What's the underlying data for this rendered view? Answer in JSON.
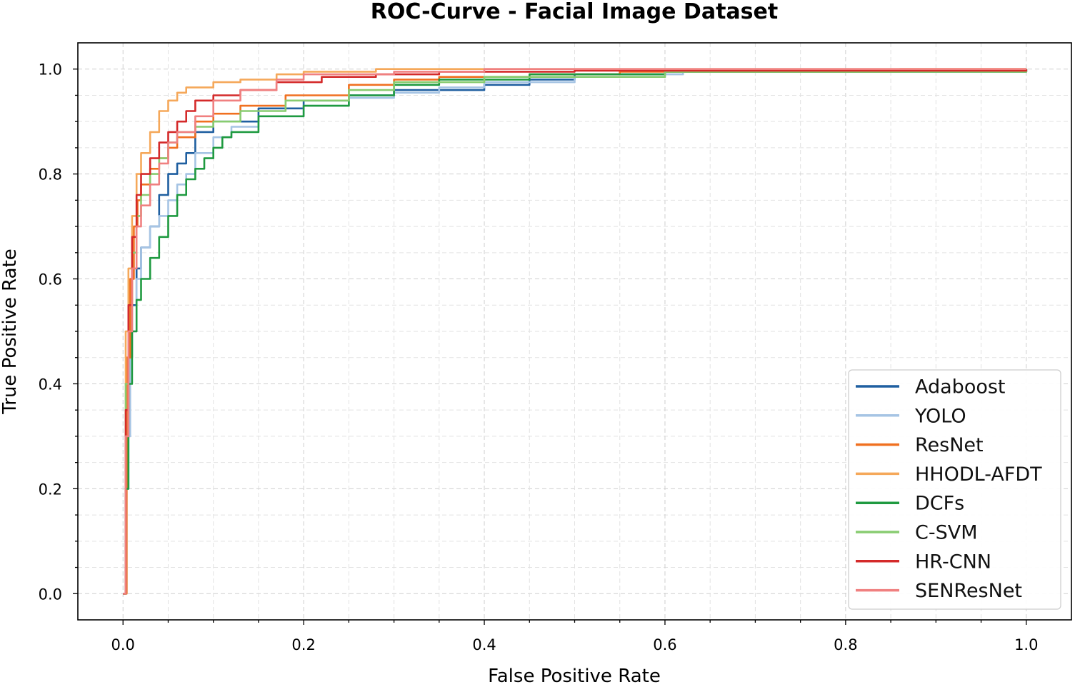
{
  "chart_data": {
    "type": "line",
    "title": "ROC-Curve - Facial Image Dataset",
    "xlabel": "False Positive Rate",
    "ylabel": "True Positive Rate",
    "xlim": [
      -0.05,
      1.05
    ],
    "ylim": [
      -0.05,
      1.05
    ],
    "xticks": [
      "0.0",
      "0.2",
      "0.4",
      "0.6",
      "0.8",
      "1.0"
    ],
    "yticks": [
      "0.0",
      "0.2",
      "0.4",
      "0.6",
      "0.8",
      "1.0"
    ],
    "grid": true,
    "legend_position": "lower-right",
    "series": [
      {
        "name": "Adaboost",
        "color": "#1f5fa0",
        "x": [
          0,
          0.003,
          0.006,
          0.01,
          0.015,
          0.02,
          0.03,
          0.04,
          0.05,
          0.06,
          0.07,
          0.08,
          0.1,
          0.15,
          0.2,
          0.25,
          0.3,
          0.4,
          0.45,
          0.5,
          0.6,
          0.8,
          0.97,
          1.0
        ],
        "y": [
          0,
          0.2,
          0.45,
          0.55,
          0.62,
          0.66,
          0.7,
          0.76,
          0.8,
          0.82,
          0.84,
          0.88,
          0.9,
          0.925,
          0.94,
          0.95,
          0.96,
          0.97,
          0.98,
          0.99,
          0.995,
          0.995,
          0.995,
          1.0
        ]
      },
      {
        "name": "YOLO",
        "color": "#a6c4e4",
        "x": [
          0,
          0.004,
          0.008,
          0.015,
          0.02,
          0.03,
          0.04,
          0.05,
          0.06,
          0.07,
          0.08,
          0.1,
          0.12,
          0.15,
          0.2,
          0.25,
          0.3,
          0.35,
          0.4,
          0.5,
          0.6,
          0.62,
          1.0
        ],
        "y": [
          0,
          0.3,
          0.5,
          0.6,
          0.66,
          0.7,
          0.72,
          0.75,
          0.78,
          0.8,
          0.84,
          0.87,
          0.89,
          0.91,
          0.93,
          0.945,
          0.955,
          0.965,
          0.975,
          0.985,
          0.99,
          0.995,
          1.0
        ]
      },
      {
        "name": "ResNet",
        "color": "#f07020",
        "x": [
          0,
          0.004,
          0.008,
          0.012,
          0.016,
          0.02,
          0.03,
          0.04,
          0.05,
          0.06,
          0.08,
          0.1,
          0.13,
          0.18,
          0.25,
          0.3,
          0.35,
          0.45,
          0.55,
          0.84,
          0.86,
          1.0
        ],
        "y": [
          0,
          0.45,
          0.6,
          0.7,
          0.75,
          0.78,
          0.81,
          0.83,
          0.85,
          0.87,
          0.9,
          0.915,
          0.93,
          0.95,
          0.97,
          0.98,
          0.985,
          0.99,
          0.995,
          0.995,
          1.0,
          1.0
        ]
      },
      {
        "name": "HHODL-AFDT",
        "color": "#f5a85a",
        "x": [
          0,
          0.003,
          0.006,
          0.01,
          0.015,
          0.02,
          0.03,
          0.04,
          0.05,
          0.06,
          0.07,
          0.1,
          0.13,
          0.17,
          0.2,
          0.28,
          0.4,
          1.0
        ],
        "y": [
          0,
          0.5,
          0.62,
          0.72,
          0.8,
          0.84,
          0.88,
          0.92,
          0.94,
          0.955,
          0.965,
          0.975,
          0.98,
          0.99,
          0.995,
          1.0,
          1.0,
          1.0
        ]
      },
      {
        "name": "DCFs",
        "color": "#1f9a40",
        "x": [
          0,
          0.003,
          0.006,
          0.01,
          0.015,
          0.02,
          0.03,
          0.04,
          0.05,
          0.06,
          0.07,
          0.08,
          0.09,
          0.1,
          0.11,
          0.12,
          0.15,
          0.2,
          0.25,
          0.3,
          0.35,
          0.45,
          0.6,
          1.0
        ],
        "y": [
          0,
          0.2,
          0.4,
          0.5,
          0.56,
          0.6,
          0.64,
          0.68,
          0.72,
          0.76,
          0.79,
          0.81,
          0.83,
          0.85,
          0.87,
          0.88,
          0.91,
          0.93,
          0.95,
          0.97,
          0.98,
          0.99,
          0.995,
          1.0
        ]
      },
      {
        "name": "C-SVM",
        "color": "#88cc70",
        "x": [
          0,
          0.003,
          0.006,
          0.01,
          0.015,
          0.02,
          0.03,
          0.04,
          0.05,
          0.06,
          0.08,
          0.1,
          0.13,
          0.18,
          0.25,
          0.3,
          0.4,
          0.6,
          0.85,
          1.0
        ],
        "y": [
          0,
          0.4,
          0.55,
          0.65,
          0.72,
          0.76,
          0.8,
          0.83,
          0.86,
          0.88,
          0.89,
          0.9,
          0.92,
          0.94,
          0.96,
          0.975,
          0.985,
          0.995,
          0.995,
          1.0
        ]
      },
      {
        "name": "HR-CNN",
        "color": "#d42a2a",
        "x": [
          0,
          0.003,
          0.006,
          0.01,
          0.015,
          0.02,
          0.03,
          0.04,
          0.05,
          0.06,
          0.07,
          0.08,
          0.1,
          0.13,
          0.17,
          0.22,
          0.28,
          0.35,
          0.5,
          0.6,
          1.0
        ],
        "y": [
          0,
          0.35,
          0.55,
          0.68,
          0.76,
          0.8,
          0.83,
          0.86,
          0.88,
          0.9,
          0.92,
          0.94,
          0.95,
          0.96,
          0.975,
          0.985,
          0.99,
          0.995,
          0.997,
          0.997,
          1.0
        ]
      },
      {
        "name": "SENResNet",
        "color": "#f08080",
        "x": [
          0,
          0.003,
          0.006,
          0.01,
          0.015,
          0.02,
          0.03,
          0.04,
          0.05,
          0.06,
          0.08,
          0.1,
          0.13,
          0.17,
          0.2,
          0.3,
          0.4,
          0.6,
          1.0
        ],
        "y": [
          0,
          0.3,
          0.5,
          0.62,
          0.7,
          0.74,
          0.78,
          0.82,
          0.86,
          0.88,
          0.91,
          0.94,
          0.96,
          0.98,
          0.99,
          0.995,
          1.0,
          1.0,
          1.0
        ]
      }
    ]
  }
}
